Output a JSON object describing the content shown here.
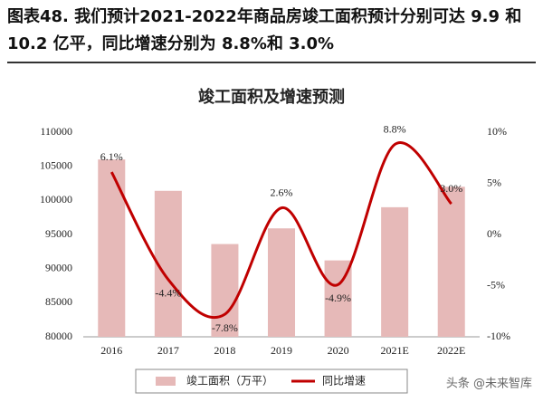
{
  "header": {
    "title": "图表48. 我们预计2021-2022年商品房竣工面积预计分别可达 9.9 和 10.2 亿平，同比增速分别为 8.8%和 3.0%"
  },
  "chart_data": {
    "type": "bar-line",
    "title": "竣工面积及增速预测",
    "categories": [
      "2016",
      "2017",
      "2018",
      "2019",
      "2020",
      "2021E",
      "2022E"
    ],
    "series": [
      {
        "name": "竣工面积（万平）",
        "type": "bar",
        "color": "#e6b9b8",
        "values": [
          106000,
          101400,
          93600,
          95900,
          91200,
          99000,
          102000
        ]
      },
      {
        "name": "同比增速",
        "type": "line",
        "axis": "y2",
        "color": "#c00000",
        "values": [
          6.1,
          -4.4,
          -7.8,
          2.6,
          -4.9,
          8.8,
          3.0
        ],
        "value_labels": [
          "6.1%",
          "-4.4%",
          "-7.8%",
          "2.6%",
          "-4.9%",
          "8.8%",
          "3.0%"
        ]
      }
    ],
    "ylim": [
      80000,
      110000
    ],
    "yticks": [
      80000,
      85000,
      90000,
      95000,
      100000,
      105000,
      110000
    ],
    "y2lim": [
      -10,
      10
    ],
    "y2ticks": [
      {
        "value": -10,
        "label": "-10%"
      },
      {
        "value": -5,
        "label": "-5%"
      },
      {
        "value": 0,
        "label": "0%"
      },
      {
        "value": 5,
        "label": "5%"
      },
      {
        "value": 10,
        "label": "10%"
      }
    ],
    "legend": "bottom",
    "grid": false
  },
  "watermark": "头条 @未来智库"
}
